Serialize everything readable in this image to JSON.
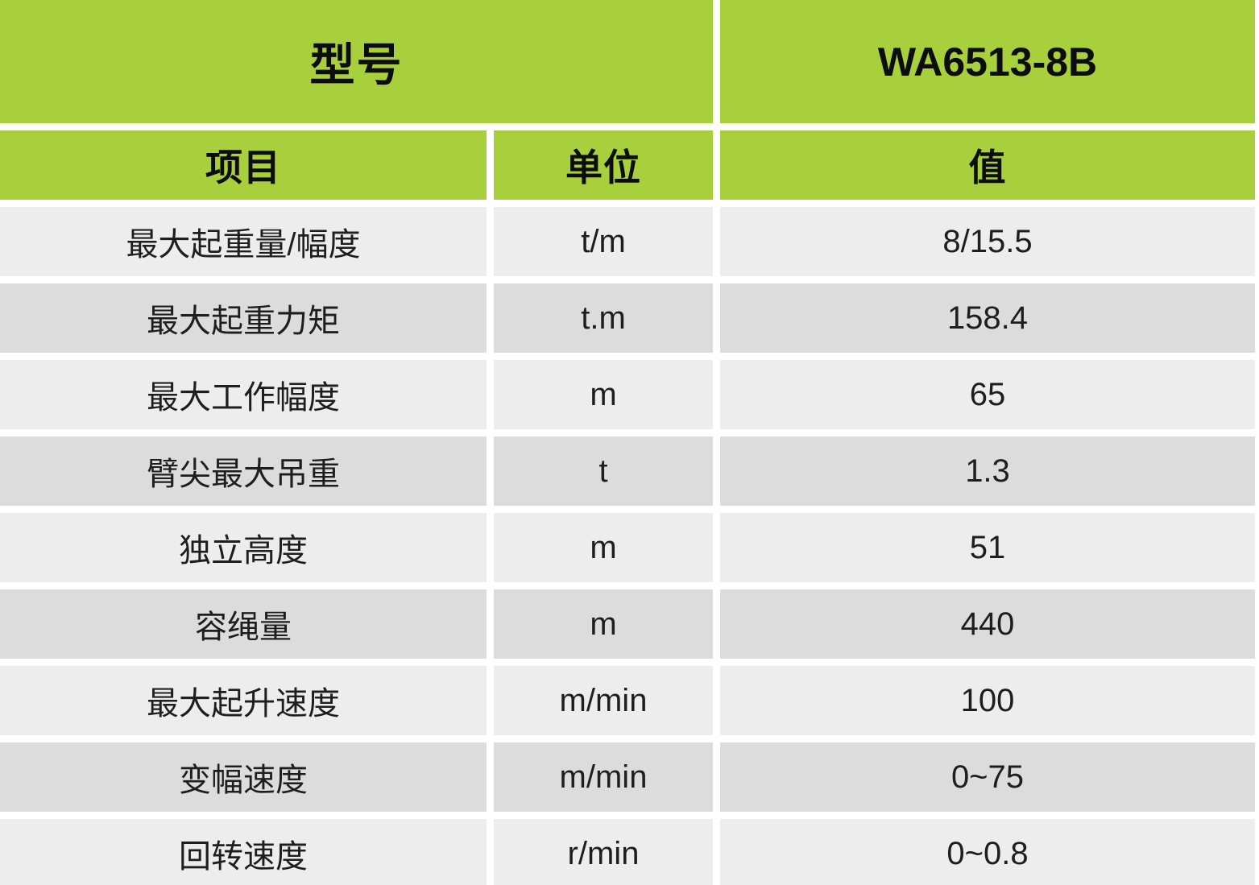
{
  "colors": {
    "header_green": "#a8cf3c",
    "row_light": "#ededed",
    "row_dark": "#dcdcdc",
    "header_text": "#0d0d0d",
    "body_text": "#1e1e1e"
  },
  "table": {
    "model_label": "型号",
    "model_value": "WA6513-8B",
    "columns": {
      "item": "项目",
      "unit": "单位",
      "value": "值"
    },
    "rows": [
      {
        "item": "最大起重量/幅度",
        "unit": "t/m",
        "value": "8/15.5"
      },
      {
        "item": "最大起重力矩",
        "unit": "t.m",
        "value": "158.4"
      },
      {
        "item": "最大工作幅度",
        "unit": "m",
        "value": "65"
      },
      {
        "item": "臂尖最大吊重",
        "unit": "t",
        "value": "1.3"
      },
      {
        "item": "独立高度",
        "unit": "m",
        "value": "51"
      },
      {
        "item": "容绳量",
        "unit": "m",
        "value": "440"
      },
      {
        "item": "最大起升速度",
        "unit": "m/min",
        "value": "100"
      },
      {
        "item": "变幅速度",
        "unit": "m/min",
        "value": "0~75"
      },
      {
        "item": "回转速度",
        "unit": "r/min",
        "value": "0~0.8"
      }
    ]
  }
}
